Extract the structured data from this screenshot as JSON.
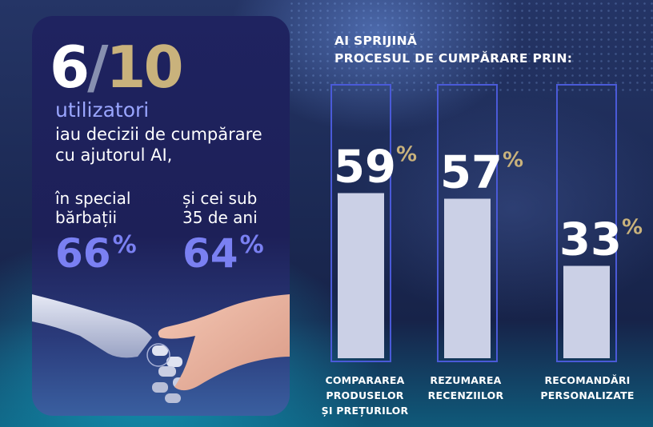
{
  "left_panel": {
    "hero_a": "6",
    "hero_slash": "/",
    "hero_b": "10",
    "users": "utilizatori",
    "desc_line1": "iau decizii de cumpărare",
    "desc_line2": "cu ajutorul AI,",
    "sub1_line1": "în special",
    "sub1_line2": "bărbații",
    "sub1_value": "66",
    "sub2_line1": "și cei sub",
    "sub2_line2": "35 de ani",
    "sub2_value": "64",
    "percent_symbol": "%"
  },
  "colors": {
    "accent_gold": "#c9b27c",
    "accent_violet": "#7a80f2",
    "bar_fill": "#cbd0e6",
    "bar_frame": "#4a5ad8"
  },
  "chart_data": {
    "type": "bar",
    "title_line1": "AI SPRIJINĂ",
    "title_line2": "PROCESUL DE CUMPĂRARE PRIN:",
    "categories": [
      [
        "COMPARAREA",
        "PRODUSELOR",
        "ȘI PREȚURILOR"
      ],
      [
        "REZUMAREA",
        "RECENZIILOR"
      ],
      [
        "RECOMANDĂRI",
        "PERSONALIZATE"
      ]
    ],
    "values": [
      59,
      57,
      33
    ],
    "value_suffix": "%",
    "ylim": [
      0,
      100
    ],
    "grid": false,
    "legend": "none"
  }
}
